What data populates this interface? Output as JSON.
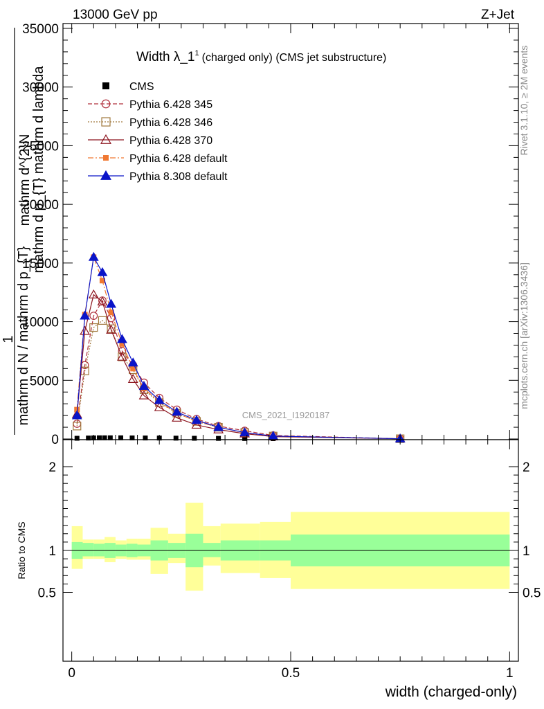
{
  "header": {
    "left": "13000 GeV pp",
    "right": "Z+Jet"
  },
  "side_labels": {
    "rivet": "Rivet 3.1.10, ≥ 2M events",
    "mcplots": "mcplots.cern.ch [arXiv:1306.3436]"
  },
  "watermark": "CMS_2021_I1920187",
  "chart_data": [
    {
      "type": "line",
      "title_main": "Width λ_1",
      "title_sup": "1",
      "title_rest": "(charged only) (CMS jet substructure)",
      "ylabel_parts": {
        "one": "1",
        "numerator": "mathrm d^{2}N",
        "denominator": "mathrm d p_{T} mathrm d lambda",
        "left": "mathrm d N / mathrm d p_{T}"
      },
      "ylim": [
        0,
        35000
      ],
      "yticks": [
        0,
        5000,
        10000,
        15000,
        20000,
        25000,
        30000,
        35000
      ],
      "ytick_labels": [
        "0",
        "5000",
        "10000",
        "15000",
        "20000",
        "25000",
        "30000",
        "35000"
      ],
      "legend_position": "top-left",
      "series": [
        {
          "name": "CMS",
          "color": "#000000",
          "marker": "square-filled",
          "dash": "none",
          "x": [
            0.012,
            0.038,
            0.05,
            0.063,
            0.075,
            0.088,
            0.112,
            0.138,
            0.168,
            0.2,
            0.238,
            0.28,
            0.335,
            0.395,
            0.46,
            0.75
          ],
          "y": [
            60,
            80,
            90,
            100,
            100,
            100,
            100,
            90,
            85,
            80,
            70,
            60,
            50,
            40,
            30,
            10
          ]
        },
        {
          "name": "Pythia 6.428 345",
          "color": "#b0303c",
          "marker": "circle-open",
          "dash": "6,3",
          "x": [
            0.012,
            0.03,
            0.05,
            0.07,
            0.09,
            0.115,
            0.14,
            0.165,
            0.2,
            0.24,
            0.285,
            0.335,
            0.395,
            0.46,
            0.75
          ],
          "y": [
            1300,
            6300,
            10500,
            11800,
            10300,
            7500,
            6300,
            4800,
            3500,
            2500,
            1700,
            1100,
            700,
            300,
            20
          ]
        },
        {
          "name": "Pythia 6.428 346",
          "color": "#a0783c",
          "marker": "square-open",
          "dash": "2,2",
          "x": [
            0.012,
            0.03,
            0.05,
            0.07,
            0.09,
            0.115,
            0.14,
            0.165,
            0.2,
            0.24,
            0.285,
            0.335,
            0.395,
            0.46,
            0.75
          ],
          "y": [
            1100,
            5800,
            9500,
            10100,
            9400,
            7000,
            5900,
            4200,
            3100,
            2200,
            1500,
            1000,
            550,
            250,
            20
          ]
        },
        {
          "name": "Pythia 6.428 370",
          "color": "#8c141e",
          "marker": "triangle-open",
          "dash": "none",
          "x": [
            0.012,
            0.03,
            0.05,
            0.07,
            0.09,
            0.115,
            0.14,
            0.165,
            0.2,
            0.24,
            0.285,
            0.335,
            0.395,
            0.46,
            0.75
          ],
          "y": [
            2100,
            9200,
            12300,
            11700,
            9300,
            7000,
            5100,
            3700,
            2700,
            1800,
            1200,
            800,
            450,
            200,
            20
          ]
        },
        {
          "name": "Pythia 6.428 default",
          "color": "#f07832",
          "marker": "square-filled",
          "dash": "8,3,2,3",
          "x": [
            0.012,
            0.03,
            0.05,
            0.07,
            0.09,
            0.115,
            0.14,
            0.165,
            0.2,
            0.24,
            0.285,
            0.335,
            0.395,
            0.46,
            0.75
          ],
          "y": [
            2500,
            10600,
            15500,
            13500,
            10800,
            8100,
            6000,
            4300,
            3200,
            2200,
            1500,
            1000,
            550,
            250,
            20
          ]
        },
        {
          "name": "Pythia 8.308 default",
          "color": "#0a14c8",
          "marker": "triangle-filled",
          "dash": "none",
          "x": [
            0.012,
            0.03,
            0.05,
            0.07,
            0.09,
            0.115,
            0.14,
            0.165,
            0.2,
            0.24,
            0.285,
            0.335,
            0.395,
            0.46,
            0.75
          ],
          "y": [
            2000,
            10500,
            15500,
            14200,
            11500,
            8500,
            6500,
            4500,
            3300,
            2300,
            1600,
            1000,
            550,
            250,
            20
          ]
        }
      ]
    },
    {
      "type": "area",
      "ylabel": "Ratio to CMS",
      "xlabel": "width (charged-only)",
      "xlim": [
        -0.02,
        1.02
      ],
      "xticks": [
        0,
        0.5,
        1
      ],
      "xtick_labels": [
        "0",
        "0.5",
        "1"
      ],
      "ylim": [
        0.35,
        2.3
      ],
      "yticks": [
        0.5,
        1,
        2
      ],
      "ytick_labels": [
        "0.5",
        "1",
        "2"
      ],
      "bin_edges": [
        0,
        0.025,
        0.05,
        0.075,
        0.1,
        0.125,
        0.15,
        0.18,
        0.22,
        0.26,
        0.3,
        0.34,
        0.43,
        0.5,
        1.0
      ],
      "green_lo": [
        0.9,
        0.93,
        0.93,
        0.91,
        0.93,
        0.92,
        0.93,
        0.88,
        0.91,
        0.8,
        0.92,
        0.88,
        0.88,
        0.81
      ],
      "green_hi": [
        1.1,
        1.09,
        1.08,
        1.09,
        1.07,
        1.08,
        1.07,
        1.12,
        1.09,
        1.2,
        1.09,
        1.12,
        1.12,
        1.19
      ],
      "yellow_lo": [
        0.78,
        0.9,
        0.9,
        0.86,
        0.9,
        0.89,
        0.89,
        0.72,
        0.85,
        0.52,
        0.82,
        0.73,
        0.67,
        0.54
      ],
      "yellow_hi": [
        1.29,
        1.13,
        1.13,
        1.16,
        1.12,
        1.14,
        1.14,
        1.27,
        1.2,
        1.57,
        1.29,
        1.32,
        1.34,
        1.46
      ],
      "colors": {
        "green": "#99ff99",
        "yellow": "#ffff99"
      }
    }
  ]
}
